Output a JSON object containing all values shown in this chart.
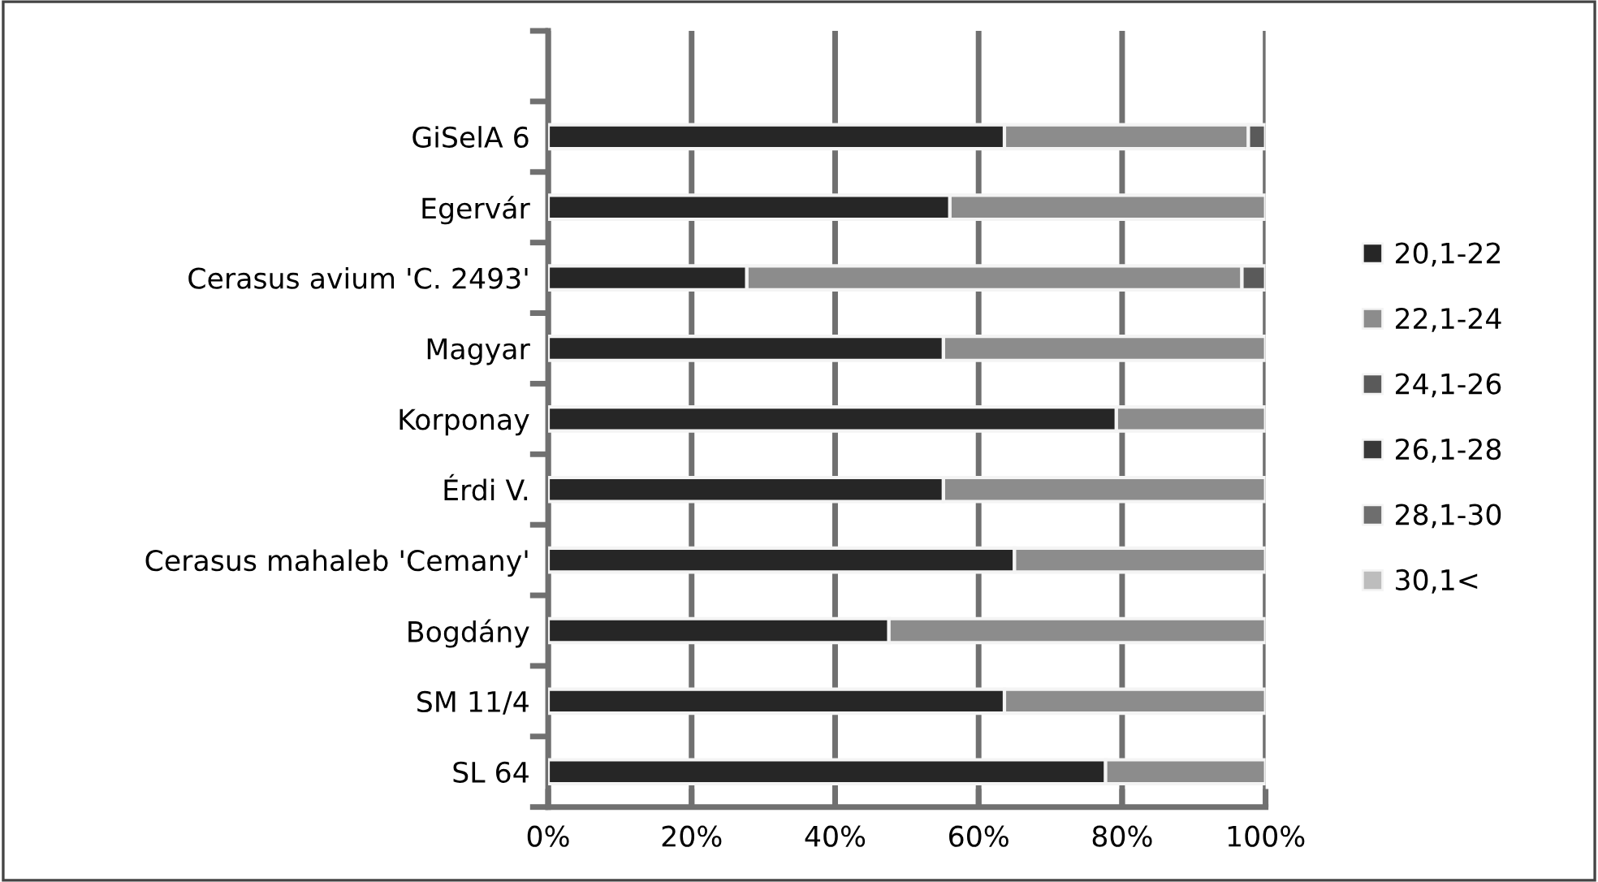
{
  "chart_data": {
    "type": "bar",
    "orientation": "horizontal",
    "stacked": true,
    "categories": [
      null,
      "GiSelA 6",
      "Egervár",
      "Cerasus avium 'C. 2493'",
      "Magyar",
      "Korponay",
      "Érdi V.",
      "Cerasus mahaleb 'Cemany'",
      "Bogdány",
      "SM 11/4",
      "SL 64"
    ],
    "series": [
      {
        "name": "20,1-22",
        "color": "#262626",
        "values": [
          null,
          63.6,
          56.0,
          27.7,
          55.1,
          79.2,
          55.1,
          65.0,
          47.5,
          63.6,
          77.7
        ]
      },
      {
        "name": "22,1-24",
        "color": "#8c8c8c",
        "values": [
          null,
          34.0,
          44.0,
          69.0,
          44.9,
          20.8,
          44.9,
          35.0,
          52.5,
          36.4,
          22.3
        ]
      },
      {
        "name": "24,1-26",
        "color": "#5a5a5a",
        "values": [
          null,
          2.4,
          0,
          3.3,
          0,
          0,
          0,
          0,
          0,
          0,
          0
        ]
      },
      {
        "name": "26,1-28",
        "color": "#383838",
        "values": [
          null,
          0,
          0,
          0,
          0,
          0,
          0,
          0,
          0,
          0,
          0
        ]
      },
      {
        "name": "28,1-30",
        "color": "#6e6e6e",
        "values": [
          null,
          0,
          0,
          0,
          0,
          0,
          0,
          0,
          0,
          0,
          0
        ]
      },
      {
        "name": "30,1<",
        "color": "#bdbdbd",
        "values": [
          null,
          0,
          0,
          0,
          0,
          0,
          0,
          0,
          0,
          0,
          0
        ]
      }
    ],
    "xlim": [
      0,
      100
    ],
    "xticks": [
      {
        "value": 0,
        "label": "0%"
      },
      {
        "value": 20,
        "label": "20%"
      },
      {
        "value": 40,
        "label": "40%"
      },
      {
        "value": 60,
        "label": "60%"
      },
      {
        "value": 80,
        "label": "80%"
      },
      {
        "value": 100,
        "label": "100%"
      }
    ],
    "grid": "x",
    "legend": "right"
  }
}
